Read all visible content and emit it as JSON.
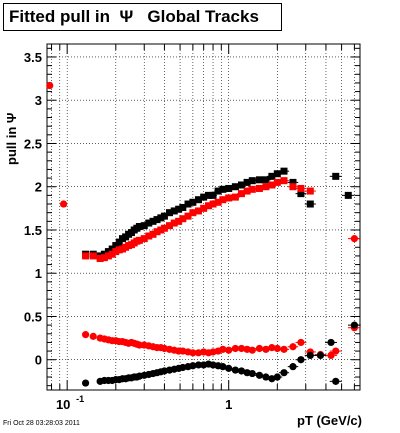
{
  "title": "Fitted pull in  Ψ   Global Tracks",
  "stamp": "Fri Oct 28 03:28:03 2011",
  "chart_data": {
    "type": "scatter",
    "title": "Fitted pull in  Ψ   Global Tracks",
    "xlabel": "pT (GeV/c)",
    "ylabel": "pull in Ψ",
    "xscale": "log",
    "xlim": [
      0.075,
      6.5
    ],
    "ylim": [
      -0.35,
      3.65
    ],
    "grid": true,
    "yticks": [
      0,
      0.5,
      1,
      1.5,
      2,
      2.5,
      3,
      3.5
    ],
    "yticklabels": [
      "0",
      "0.5",
      "1",
      "1.5",
      "2",
      "2.5",
      "3",
      "3.5"
    ],
    "xticks": [
      0.1,
      1
    ],
    "xticklabels_base": [
      "10",
      "1"
    ],
    "xticklabels_exp": [
      "-1",
      ""
    ],
    "series": [
      {
        "marker": "square",
        "color": "#000000",
        "x": [
          0.13,
          0.145,
          0.16,
          0.17,
          0.18,
          0.19,
          0.2,
          0.21,
          0.22,
          0.23,
          0.24,
          0.25,
          0.26,
          0.27,
          0.28,
          0.3,
          0.32,
          0.34,
          0.36,
          0.38,
          0.4,
          0.43,
          0.46,
          0.49,
          0.52,
          0.56,
          0.6,
          0.65,
          0.7,
          0.75,
          0.8,
          0.86,
          0.92,
          1.0,
          1.1,
          1.2,
          1.3,
          1.4,
          1.55,
          1.7,
          1.85,
          2.0,
          2.2,
          2.5,
          2.8,
          3.2,
          4.6,
          5.5
        ],
        "y": [
          1.22,
          1.22,
          1.2,
          1.22,
          1.25,
          1.28,
          1.32,
          1.36,
          1.4,
          1.42,
          1.45,
          1.47,
          1.5,
          1.52,
          1.54,
          1.55,
          1.58,
          1.6,
          1.62,
          1.64,
          1.66,
          1.7,
          1.72,
          1.74,
          1.76,
          1.8,
          1.82,
          1.85,
          1.88,
          1.9,
          1.9,
          1.95,
          1.97,
          1.98,
          2.0,
          2.02,
          2.05,
          2.07,
          2.08,
          2.08,
          2.12,
          2.15,
          2.18,
          2.05,
          1.92,
          1.8,
          2.12,
          1.9
        ]
      },
      {
        "marker": "square",
        "color": "#ff0000",
        "x": [
          0.13,
          0.145,
          0.16,
          0.17,
          0.18,
          0.19,
          0.2,
          0.21,
          0.22,
          0.23,
          0.24,
          0.25,
          0.26,
          0.27,
          0.28,
          0.3,
          0.32,
          0.34,
          0.36,
          0.38,
          0.4,
          0.43,
          0.46,
          0.49,
          0.52,
          0.56,
          0.6,
          0.65,
          0.7,
          0.75,
          0.8,
          0.86,
          0.92,
          1.0,
          1.1,
          1.2,
          1.3,
          1.4,
          1.55,
          1.7,
          1.85,
          2.0,
          2.2,
          2.5,
          2.8,
          3.2
        ],
        "y": [
          1.2,
          1.2,
          1.17,
          1.18,
          1.2,
          1.22,
          1.25,
          1.27,
          1.28,
          1.3,
          1.32,
          1.33,
          1.35,
          1.37,
          1.38,
          1.4,
          1.43,
          1.45,
          1.48,
          1.5,
          1.52,
          1.55,
          1.58,
          1.6,
          1.63,
          1.66,
          1.7,
          1.72,
          1.75,
          1.78,
          1.8,
          1.82,
          1.85,
          1.87,
          1.88,
          1.92,
          1.95,
          1.97,
          1.98,
          2.0,
          2.02,
          2.05,
          2.07,
          2.0,
          1.98,
          1.95
        ]
      },
      {
        "marker": "circle",
        "color": "#ff0000",
        "x": [
          0.078,
          0.095,
          0.13,
          0.145,
          0.16,
          0.17,
          0.18,
          0.19,
          0.2,
          0.21,
          0.22,
          0.23,
          0.24,
          0.25,
          0.26,
          0.27,
          0.28,
          0.3,
          0.32,
          0.34,
          0.36,
          0.38,
          0.4,
          0.43,
          0.46,
          0.49,
          0.52,
          0.56,
          0.6,
          0.65,
          0.7,
          0.75,
          0.8,
          0.86,
          0.92,
          1.0,
          1.1,
          1.2,
          1.3,
          1.4,
          1.55,
          1.7,
          1.85,
          2.0,
          2.2,
          2.5,
          2.8,
          3.2,
          3.7,
          4.3,
          4.6,
          6.0,
          6.0
        ],
        "y": [
          3.17,
          1.8,
          0.29,
          0.27,
          0.25,
          0.24,
          0.23,
          0.22,
          0.22,
          0.21,
          0.21,
          0.2,
          0.19,
          0.2,
          0.19,
          0.18,
          0.17,
          0.17,
          0.16,
          0.15,
          0.14,
          0.14,
          0.13,
          0.12,
          0.11,
          0.1,
          0.1,
          0.09,
          0.08,
          0.08,
          0.09,
          0.08,
          0.09,
          0.1,
          0.12,
          0.11,
          0.13,
          0.13,
          0.12,
          0.11,
          0.13,
          0.12,
          0.14,
          0.13,
          0.12,
          0.15,
          0.2,
          0.09,
          0.06,
          0.05,
          0.1,
          1.4,
          0.37
        ]
      },
      {
        "marker": "circle",
        "color": "#000000",
        "x": [
          0.13,
          0.16,
          0.17,
          0.18,
          0.19,
          0.2,
          0.21,
          0.22,
          0.23,
          0.24,
          0.25,
          0.26,
          0.27,
          0.28,
          0.3,
          0.32,
          0.34,
          0.36,
          0.38,
          0.4,
          0.43,
          0.46,
          0.49,
          0.52,
          0.56,
          0.6,
          0.65,
          0.7,
          0.75,
          0.8,
          0.86,
          0.92,
          1.0,
          1.1,
          1.2,
          1.3,
          1.4,
          1.55,
          1.7,
          1.85,
          2.0,
          2.2,
          2.5,
          2.8,
          3.2,
          3.7,
          4.3,
          4.6,
          6.0
        ],
        "y": [
          -0.27,
          -0.25,
          -0.24,
          -0.24,
          -0.24,
          -0.23,
          -0.23,
          -0.22,
          -0.22,
          -0.21,
          -0.21,
          -0.2,
          -0.2,
          -0.19,
          -0.18,
          -0.17,
          -0.16,
          -0.15,
          -0.14,
          -0.13,
          -0.12,
          -0.11,
          -0.1,
          -0.09,
          -0.08,
          -0.07,
          -0.06,
          -0.06,
          -0.05,
          -0.06,
          -0.07,
          -0.08,
          -0.1,
          -0.12,
          -0.13,
          -0.15,
          -0.16,
          -0.18,
          -0.2,
          -0.22,
          -0.2,
          -0.15,
          -0.08,
          0.0,
          0.05,
          0.05,
          0.2,
          -0.25,
          0.4
        ]
      }
    ]
  }
}
